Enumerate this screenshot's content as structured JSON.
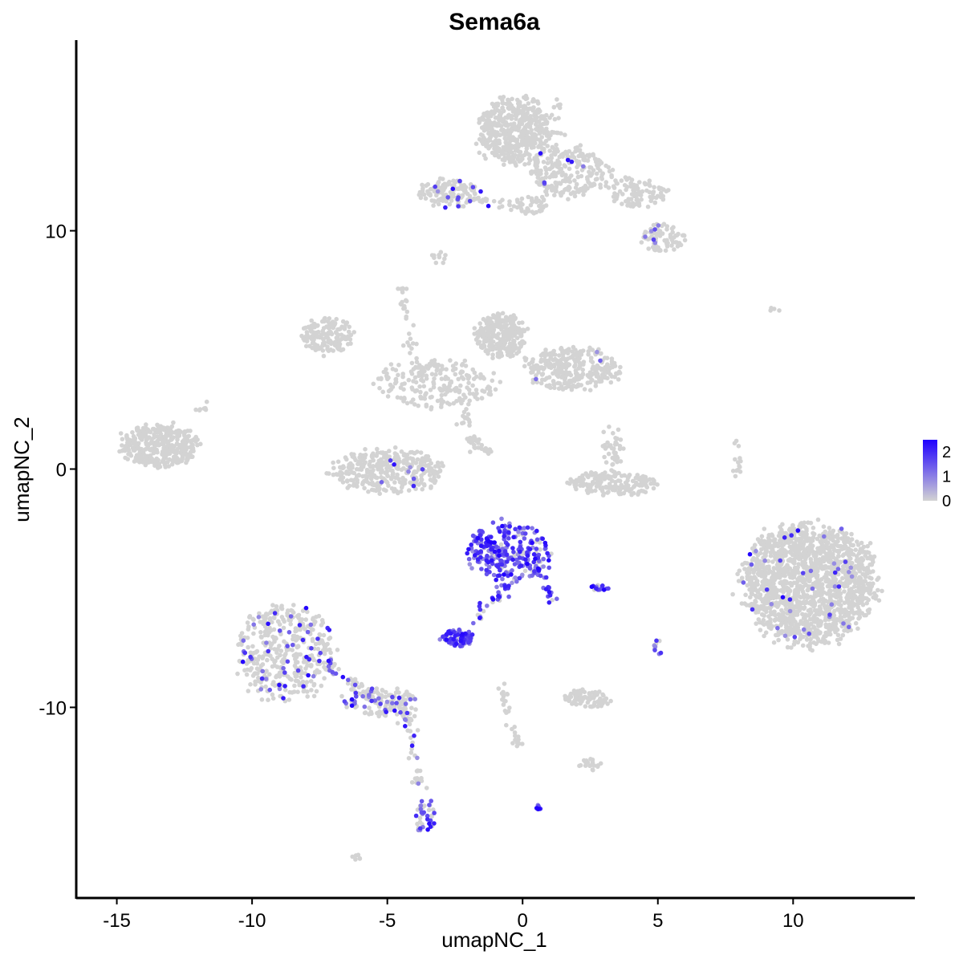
{
  "chart_data": {
    "type": "scatter",
    "title": "Sema6a",
    "xlabel": "umapNC_1",
    "ylabel": "umapNC_2",
    "xlim": [
      -16.5,
      14.5
    ],
    "ylim": [
      -18,
      18
    ],
    "xticks": [
      -15,
      -10,
      -5,
      0,
      5,
      10
    ],
    "yticks": [
      -10,
      0,
      10
    ],
    "grid": false,
    "legend": {
      "placement": "right",
      "type": "colorbar",
      "ticks": [
        2,
        1,
        0
      ],
      "low_color": "#d3d3d3",
      "high_color": "#1f00ff"
    },
    "clusters": [
      {
        "cx": -0.3,
        "cy": 14.2,
        "rx": 1.3,
        "ry": 1.4,
        "n": 500,
        "expr": 0.0
      },
      {
        "cx": 1.8,
        "cy": 12.5,
        "rx": 1.5,
        "ry": 1.0,
        "n": 220,
        "expr": 0.02
      },
      {
        "cx": 4.2,
        "cy": 11.6,
        "rx": 1.1,
        "ry": 0.6,
        "n": 100,
        "expr": 0.02
      },
      {
        "cx": 5.2,
        "cy": 9.7,
        "rx": 0.8,
        "ry": 0.6,
        "n": 80,
        "expr": 0.03
      },
      {
        "cx": -2.7,
        "cy": 11.6,
        "rx": 1.1,
        "ry": 0.6,
        "n": 120,
        "expr": 0.08
      },
      {
        "cx": 0.3,
        "cy": 11.1,
        "rx": 0.6,
        "ry": 0.4,
        "n": 40,
        "expr": 0.0
      },
      {
        "cx": -3.1,
        "cy": 8.9,
        "rx": 0.3,
        "ry": 0.3,
        "n": 10,
        "expr": 0.0
      },
      {
        "cx": -7.2,
        "cy": 5.6,
        "rx": 0.9,
        "ry": 0.8,
        "n": 160,
        "expr": 0.0
      },
      {
        "cx": -0.8,
        "cy": 5.6,
        "rx": 0.9,
        "ry": 0.9,
        "n": 280,
        "expr": 0.0
      },
      {
        "cx": 1.8,
        "cy": 4.2,
        "rx": 1.8,
        "ry": 0.9,
        "n": 300,
        "expr": 0.02
      },
      {
        "cx": -3.2,
        "cy": 3.6,
        "rx": 2.2,
        "ry": 1.0,
        "n": 200,
        "expr": 0.0
      },
      {
        "cx": -5.0,
        "cy": -0.1,
        "rx": 2.0,
        "ry": 0.9,
        "n": 340,
        "expr": 0.04
      },
      {
        "cx": -13.4,
        "cy": 1.0,
        "rx": 1.4,
        "ry": 0.9,
        "n": 380,
        "expr": 0.0
      },
      {
        "cx": 3.4,
        "cy": -0.6,
        "rx": 1.6,
        "ry": 0.5,
        "n": 180,
        "expr": 0.0
      },
      {
        "cx": 3.3,
        "cy": 0.9,
        "rx": 0.4,
        "ry": 0.9,
        "n": 40,
        "expr": 0.0
      },
      {
        "cx": 7.9,
        "cy": 0.3,
        "rx": 0.15,
        "ry": 0.9,
        "n": 14,
        "expr": 0.0
      },
      {
        "cx": 10.6,
        "cy": -4.8,
        "rx": 2.4,
        "ry": 2.5,
        "n": 1600,
        "expr": 0.02
      },
      {
        "cx": -0.5,
        "cy": -3.5,
        "rx": 1.5,
        "ry": 1.2,
        "n": 280,
        "expr": 0.85
      },
      {
        "cx": -2.4,
        "cy": -7.1,
        "rx": 0.55,
        "ry": 0.35,
        "n": 80,
        "expr": 0.9
      },
      {
        "cx": 2.8,
        "cy": -5.0,
        "rx": 0.35,
        "ry": 0.15,
        "n": 16,
        "expr": 0.7
      },
      {
        "cx": -8.8,
        "cy": -7.7,
        "rx": 1.8,
        "ry": 2.0,
        "n": 420,
        "expr": 0.12
      },
      {
        "cx": -5.3,
        "cy": -9.8,
        "rx": 1.4,
        "ry": 0.6,
        "n": 120,
        "expr": 0.25
      },
      {
        "cx": -3.6,
        "cy": -14.6,
        "rx": 0.35,
        "ry": 0.7,
        "n": 40,
        "expr": 0.55
      },
      {
        "cx": 2.4,
        "cy": -9.6,
        "rx": 0.8,
        "ry": 0.4,
        "n": 80,
        "expr": 0.0
      },
      {
        "cx": 0.6,
        "cy": -14.2,
        "rx": 0.1,
        "ry": 0.1,
        "n": 6,
        "expr": 0.8
      },
      {
        "cx": 2.5,
        "cy": -12.4,
        "rx": 0.4,
        "ry": 0.25,
        "n": 18,
        "expr": 0.0
      },
      {
        "cx": 5.0,
        "cy": -7.5,
        "rx": 0.15,
        "ry": 0.5,
        "n": 10,
        "expr": 0.4
      },
      {
        "cx": -6.1,
        "cy": -16.3,
        "rx": 0.2,
        "ry": 0.1,
        "n": 6,
        "expr": 0.0
      },
      {
        "cx": 9.3,
        "cy": 6.7,
        "rx": 0.3,
        "ry": 0.1,
        "n": 4,
        "expr": 0.0
      }
    ],
    "paths": [
      {
        "from": [
          -3.0,
          11.4
        ],
        "to": [
          0.3,
          11.0
        ],
        "n": 40,
        "expr": 0.03
      },
      {
        "from": [
          1.1,
          11.4
        ],
        "to": [
          1.3,
          15.5
        ],
        "n": 40,
        "expr": 0.0
      },
      {
        "from": [
          -4.5,
          7.6
        ],
        "to": [
          -3.8,
          3.9
        ],
        "n": 40,
        "expr": 0.0
      },
      {
        "from": [
          -2.4,
          3.2
        ],
        "to": [
          -1.8,
          0.8
        ],
        "n": 30,
        "expr": 0.0
      },
      {
        "from": [
          -2.0,
          1.4
        ],
        "to": [
          -1.2,
          0.6
        ],
        "n": 20,
        "expr": 0.0
      },
      {
        "from": [
          -0.5,
          -4.8
        ],
        "to": [
          -1.8,
          -6.4
        ],
        "n": 30,
        "expr": 0.75
      },
      {
        "from": [
          0.6,
          -4.2
        ],
        "to": [
          1.1,
          -5.5
        ],
        "n": 20,
        "expr": 0.8
      },
      {
        "from": [
          -7.5,
          -8.0
        ],
        "to": [
          -4.2,
          -10.3
        ],
        "n": 50,
        "expr": 0.25
      },
      {
        "from": [
          -4.3,
          -10.3
        ],
        "to": [
          -3.8,
          -13.8
        ],
        "n": 40,
        "expr": 0.2
      },
      {
        "from": [
          -0.8,
          -9.2
        ],
        "to": [
          -0.2,
          -11.6
        ],
        "n": 30,
        "expr": 0.02
      },
      {
        "from": [
          -12.0,
          2.4
        ],
        "to": [
          -11.5,
          2.8
        ],
        "n": 8,
        "expr": 0.0
      }
    ],
    "marker_size": 2.8
  }
}
